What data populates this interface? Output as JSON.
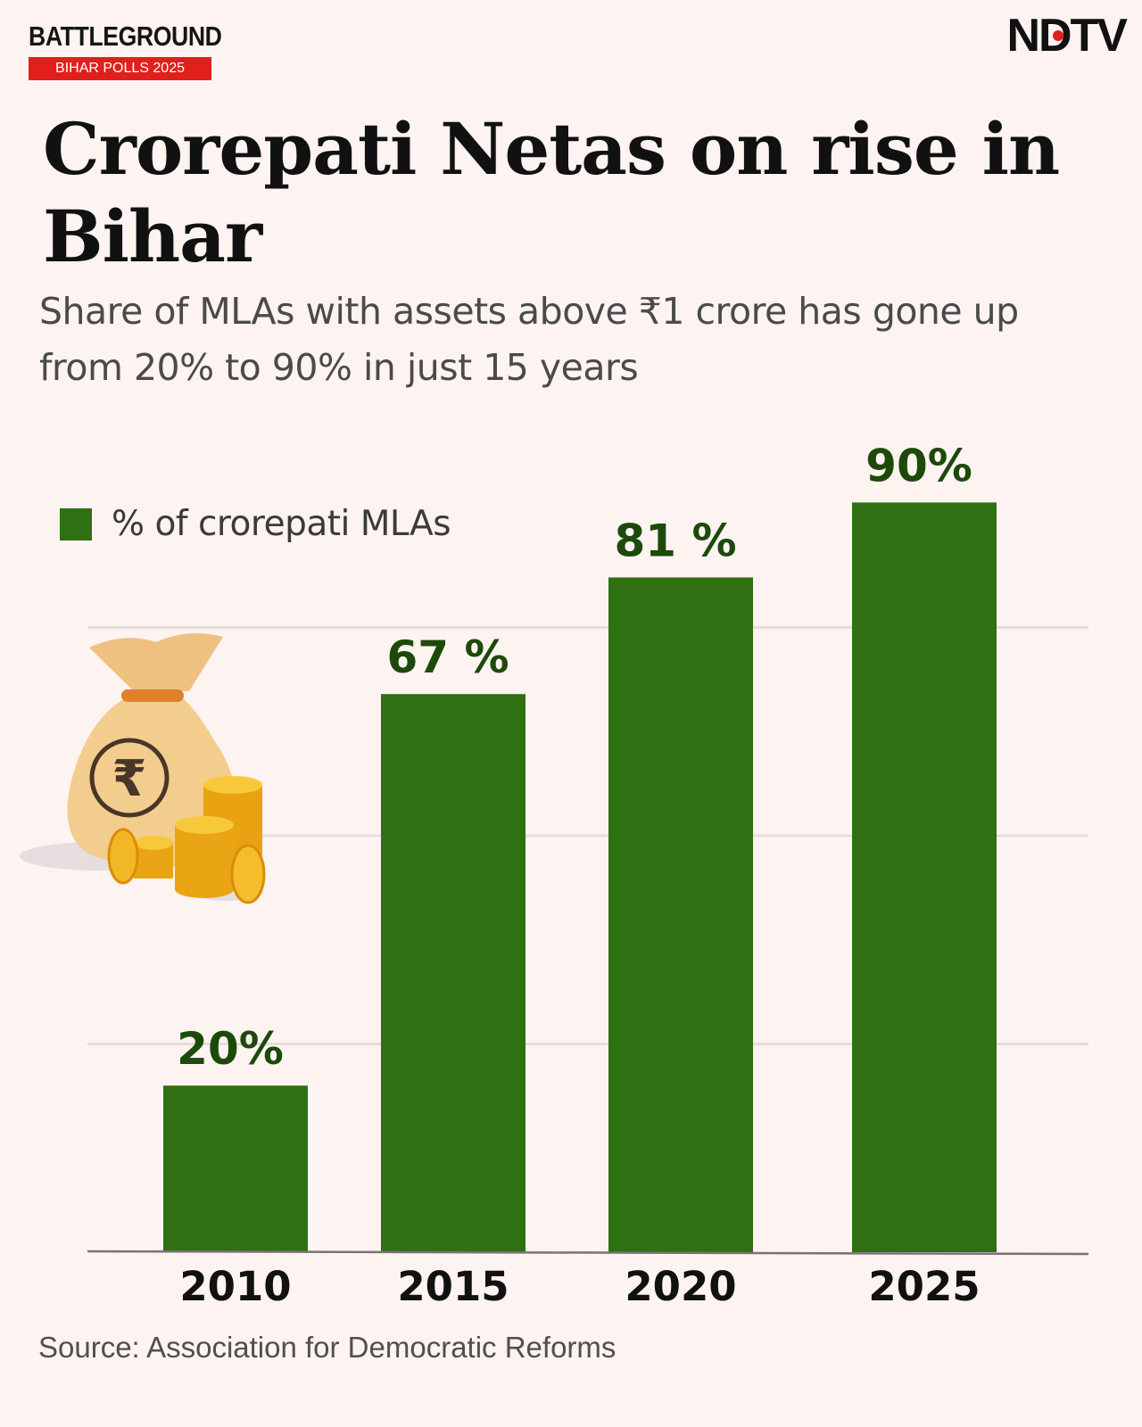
{
  "header": {
    "brand_word": "BATTLEGROUND",
    "brand_sub": "BIHAR POLLS 2025",
    "publisher_logo": "NDTV"
  },
  "title": "Crorepati Netas on rise in Bihar",
  "subtitle": "Share of MLAs with assets above ₹1 crore has gone up from 20% to 90% in just 15 years",
  "legend_label": "% of crorepati MLAs",
  "source": "Source: Association for Democratic Reforms",
  "colors": {
    "bar": "#2e7012",
    "value_label": "#1d4a0b",
    "brand_red": "#e0201b",
    "background": "#fdf3f1"
  },
  "illustration": "money-bag-with-rupee-and-coins",
  "chart_data": {
    "type": "bar",
    "categories": [
      "2010",
      "2015",
      "2020",
      "2025"
    ],
    "values": [
      20,
      67,
      81,
      90
    ],
    "value_labels": [
      "20%",
      "67 %",
      "81 %",
      "90%"
    ],
    "series": [
      {
        "name": "% of crorepati MLAs",
        "values": [
          20,
          67,
          81,
          90
        ]
      }
    ],
    "title": "Crorepati Netas on rise in Bihar",
    "xlabel": "",
    "ylabel": "",
    "ylim": [
      0,
      100
    ],
    "grid": true,
    "gridlines": [
      25,
      50,
      75
    ],
    "legend": "top-left"
  }
}
